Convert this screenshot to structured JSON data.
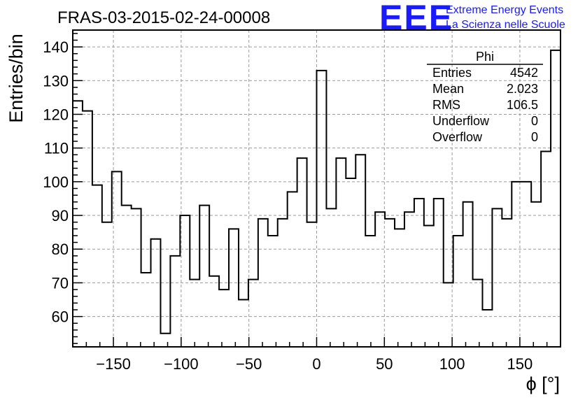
{
  "header": {
    "title": "FRAS-03-2015-02-24-00008",
    "logo_text": "EEE",
    "logo_line1": "Extreme Energy Events",
    "logo_line2": "La Scienza nelle Scuole"
  },
  "stats_box": {
    "name": "Phi",
    "rows": [
      {
        "label": "Entries",
        "value": "4542"
      },
      {
        "label": "Mean",
        "value": "2.023"
      },
      {
        "label": "RMS",
        "value": "106.5"
      },
      {
        "label": "Underflow",
        "value": "0"
      },
      {
        "label": "Overflow",
        "value": "0"
      }
    ]
  },
  "colors": {
    "line": "#000000",
    "grid": "#9a9a9a",
    "logo": "#1a1aff"
  },
  "chart_data": {
    "type": "histogram",
    "title": "FRAS-03-2015-02-24-00008",
    "xlabel": "ϕ [°]",
    "ylabel": "Entries/bin",
    "xlim": [
      -180,
      180
    ],
    "ylim": [
      51,
      145
    ],
    "bin_width": 7.2,
    "x_ticks": [
      -150,
      -100,
      -50,
      0,
      50,
      100,
      150
    ],
    "x_tick_labels": [
      "−150",
      "−100",
      "−50",
      "0",
      "50",
      "100",
      "150"
    ],
    "y_ticks": [
      60,
      70,
      80,
      90,
      100,
      110,
      120,
      130,
      140
    ],
    "grid": true,
    "legend": "stats box top-right",
    "values": [
      124,
      121,
      99,
      88,
      103,
      93,
      92,
      73,
      83,
      55,
      78,
      90,
      71,
      93,
      72,
      68,
      86,
      65,
      71,
      89,
      84,
      89,
      97,
      107,
      88,
      133,
      92,
      107,
      101,
      108,
      84,
      91,
      89,
      86,
      91,
      95,
      87,
      95,
      70,
      84,
      94,
      71,
      62,
      92,
      89,
      100,
      100,
      94,
      109,
      139
    ]
  }
}
